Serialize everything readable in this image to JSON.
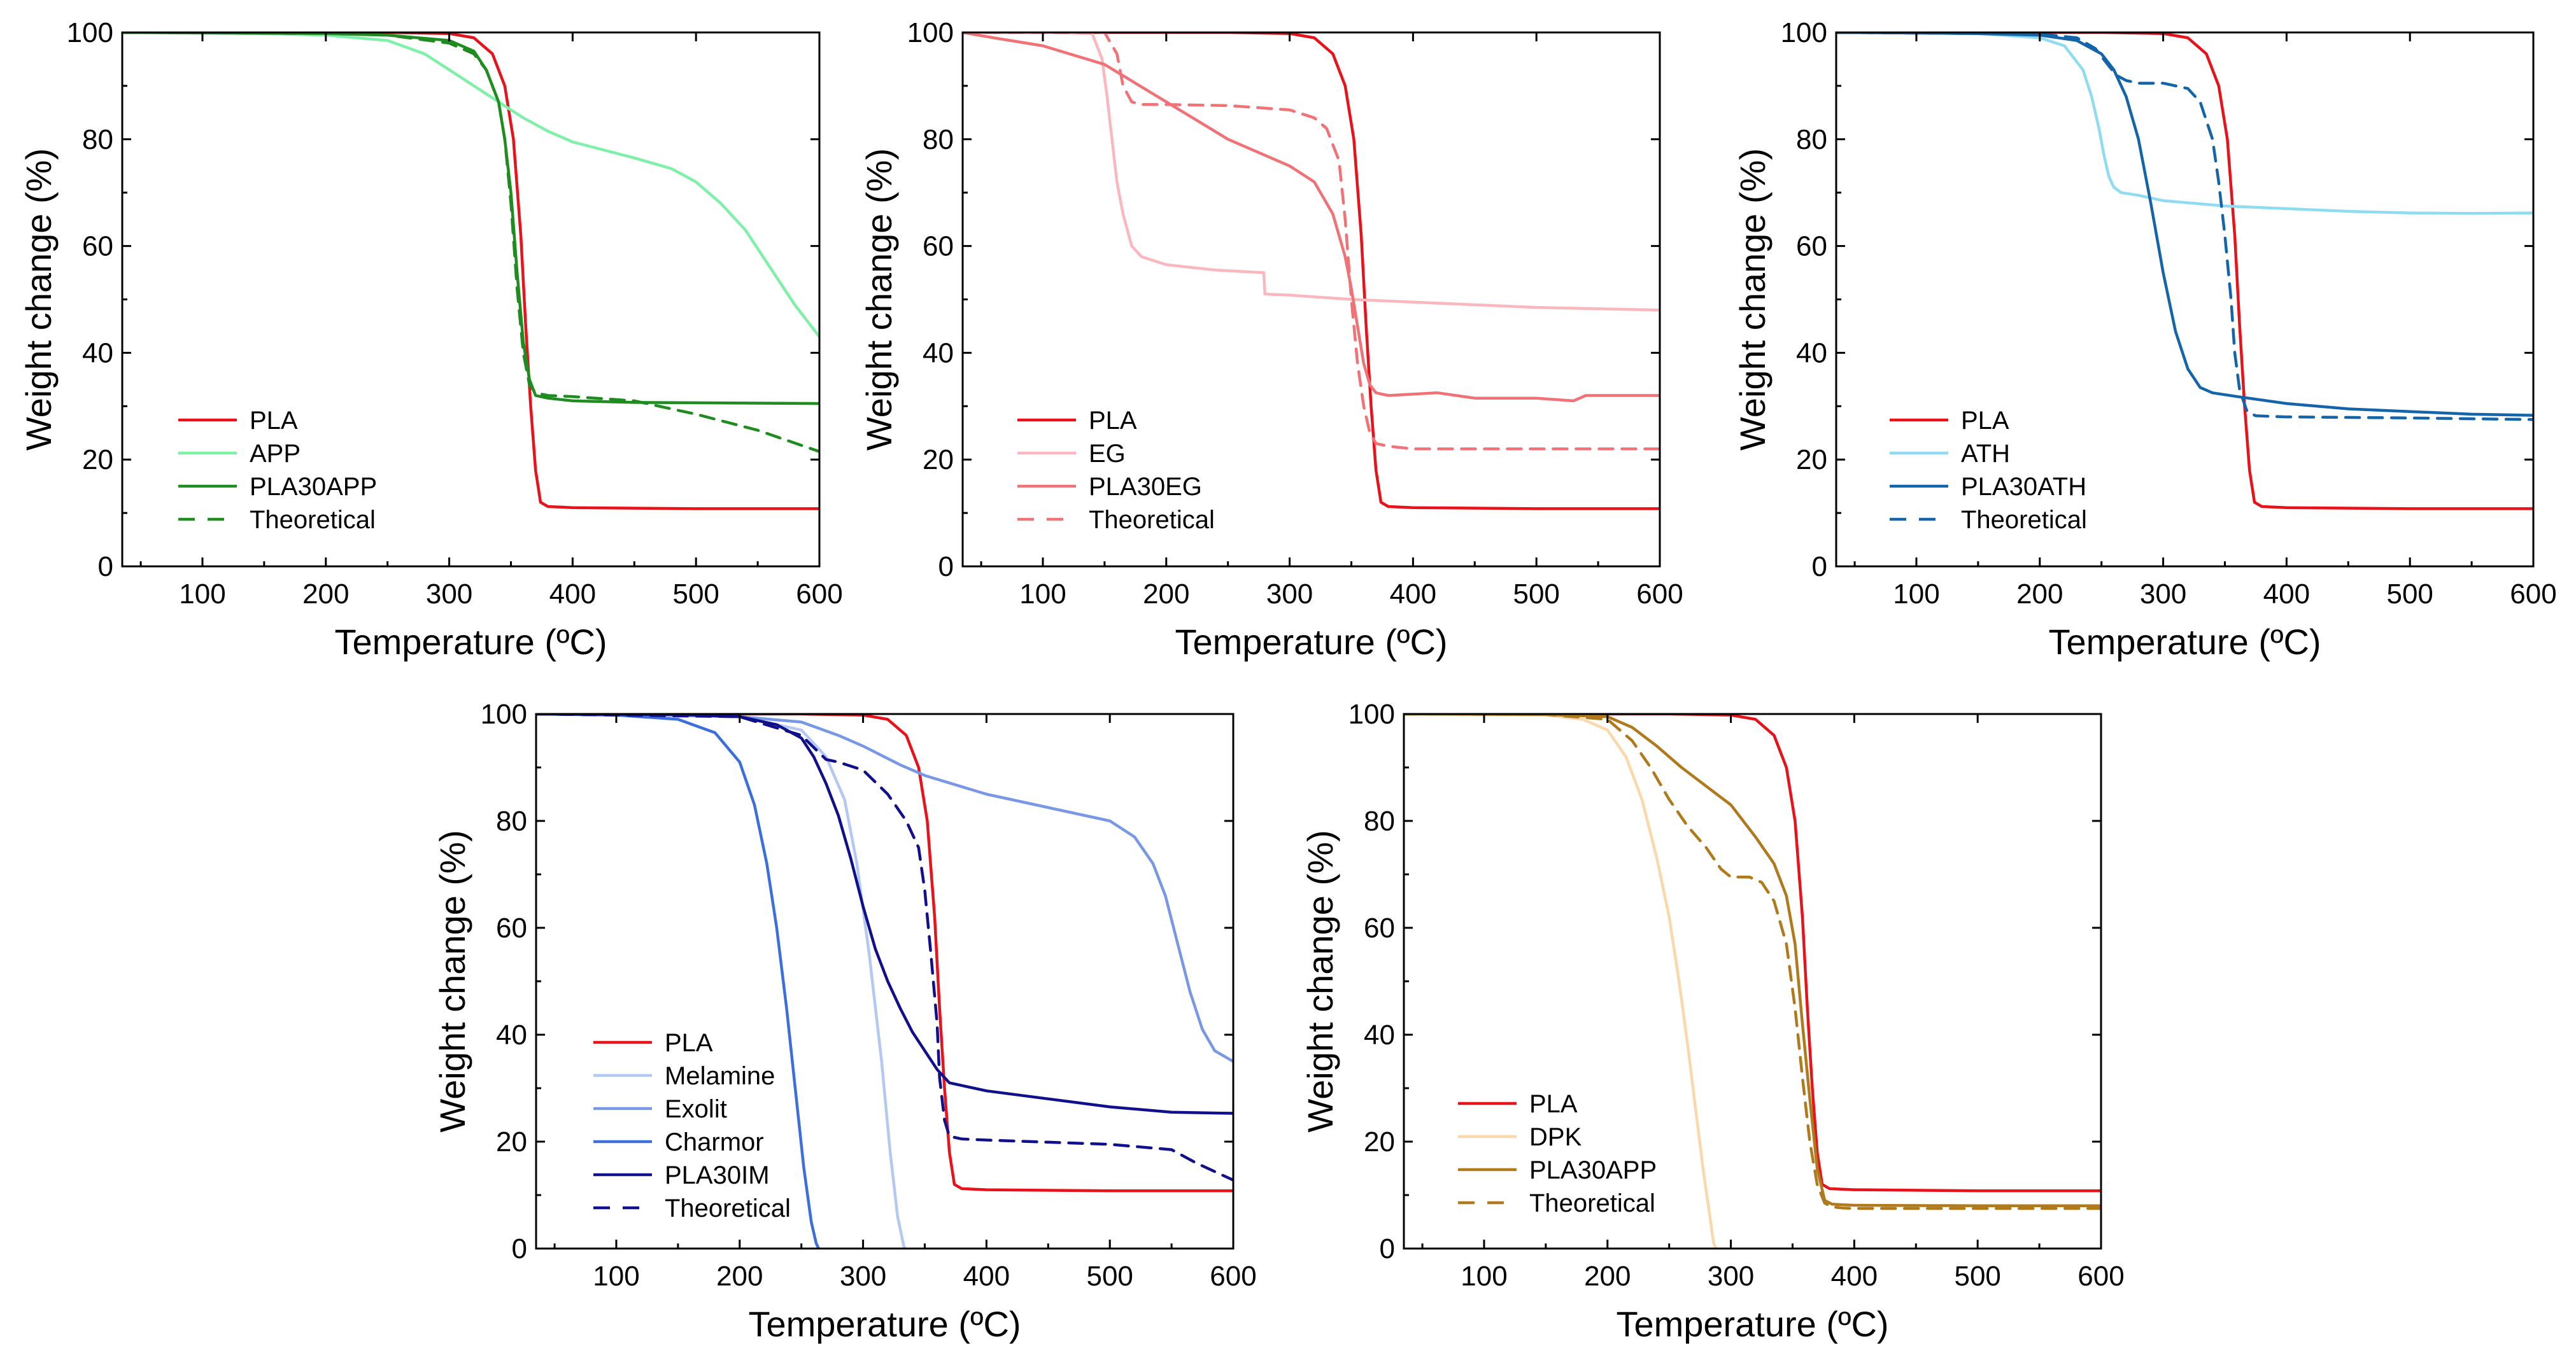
{
  "chart_data": [
    {
      "type": "line",
      "xlabel": "Temperature (ºC)",
      "ylabel": "Weight change (%)",
      "xlim": [
        35,
        600
      ],
      "ylim": [
        0,
        100
      ],
      "xticks": [
        100,
        200,
        300,
        400,
        500,
        600
      ],
      "yticks": [
        0,
        20,
        40,
        60,
        80,
        100
      ],
      "legend": "bottom-left",
      "series": [
        {
          "name": "PLA",
          "color": "#e8121b",
          "dash": false,
          "x": [
            35,
            250,
            300,
            320,
            335,
            345,
            352,
            358,
            362,
            366,
            370,
            374,
            380,
            400,
            500,
            600
          ],
          "y": [
            100,
            100,
            99.8,
            99,
            96,
            90,
            80,
            62,
            45,
            30,
            18,
            12,
            11.2,
            11,
            10.8,
            10.8
          ]
        },
        {
          "name": "APP",
          "color": "#7ff0a8",
          "dash": false,
          "x": [
            35,
            150,
            200,
            250,
            280,
            300,
            320,
            340,
            360,
            380,
            400,
            450,
            480,
            500,
            520,
            540,
            560,
            580,
            600
          ],
          "y": [
            100,
            99.8,
            99.5,
            98.5,
            96,
            93,
            90,
            87,
            84,
            81.5,
            79.5,
            76.5,
            74.5,
            72,
            68,
            63,
            56,
            49,
            43
          ]
        },
        {
          "name": "PLA30APP",
          "color": "#1e8c1e",
          "dash": false,
          "x": [
            35,
            200,
            250,
            300,
            320,
            330,
            340,
            345,
            350,
            355,
            360,
            365,
            370,
            380,
            400,
            450,
            600
          ],
          "y": [
            100,
            99.8,
            99.5,
            98.5,
            96.5,
            93,
            87,
            80,
            70,
            55,
            42,
            35,
            32,
            31.5,
            31,
            30.7,
            30.5
          ]
        },
        {
          "name": "Theoretical",
          "color": "#1e8c1e",
          "dash": true,
          "x": [
            35,
            200,
            250,
            300,
            320,
            330,
            340,
            345,
            350,
            355,
            360,
            365,
            370,
            380,
            400,
            450,
            500,
            550,
            600
          ],
          "y": [
            100,
            99.8,
            99.5,
            98,
            96,
            93,
            87,
            80,
            68,
            52,
            40,
            34,
            32.5,
            32,
            31.8,
            31,
            28.5,
            25.5,
            21.5
          ]
        }
      ]
    },
    {
      "type": "line",
      "xlabel": "Temperature (ºC)",
      "ylabel": "Weight change (%)",
      "xlim": [
        35,
        600
      ],
      "ylim": [
        0,
        100
      ],
      "xticks": [
        100,
        200,
        300,
        400,
        500,
        600
      ],
      "yticks": [
        0,
        20,
        40,
        60,
        80,
        100
      ],
      "legend": "bottom-left",
      "series": [
        {
          "name": "PLA",
          "color": "#e8121b",
          "dash": false,
          "x": [
            35,
            250,
            300,
            320,
            335,
            345,
            352,
            358,
            362,
            366,
            370,
            374,
            380,
            400,
            500,
            600
          ],
          "y": [
            100,
            100,
            99.8,
            99,
            96,
            90,
            80,
            62,
            45,
            30,
            18,
            12,
            11.2,
            11,
            10.8,
            10.8
          ]
        },
        {
          "name": "EG",
          "color": "#fab8be",
          "dash": false,
          "x": [
            35,
            100,
            140,
            148,
            152,
            156,
            160,
            165,
            172,
            180,
            200,
            240,
            279,
            280,
            300,
            350,
            400,
            500,
            600
          ],
          "y": [
            100,
            100,
            99.8,
            95,
            88,
            80,
            72,
            66,
            60,
            58,
            56.5,
            55.5,
            55,
            51,
            50.8,
            50,
            49.5,
            48.5,
            48
          ]
        },
        {
          "name": "PLA30EG",
          "color": "#f07276",
          "dash": false,
          "x": [
            35,
            60,
            100,
            150,
            200,
            250,
            300,
            320,
            335,
            345,
            350,
            355,
            360,
            365,
            370,
            380,
            420,
            450,
            500,
            530,
            540,
            600
          ],
          "y": [
            100,
            99,
            97.5,
            94,
            87,
            80,
            75,
            72,
            66,
            58,
            52,
            45,
            38,
            34,
            32.5,
            32,
            32.5,
            31.5,
            31.5,
            31,
            32,
            32
          ]
        },
        {
          "name": "Theoretical",
          "color": "#f07276",
          "dash": true,
          "x": [
            35,
            150,
            160,
            165,
            172,
            180,
            200,
            250,
            300,
            320,
            330,
            340,
            345,
            350,
            355,
            360,
            365,
            370,
            380,
            400,
            500,
            600
          ],
          "y": [
            100,
            100,
            96,
            90,
            87,
            86.5,
            86.5,
            86.3,
            85.5,
            84,
            82,
            76,
            65,
            50,
            38,
            30,
            25,
            23,
            22.5,
            22,
            22,
            22
          ]
        }
      ]
    },
    {
      "type": "line",
      "xlabel": "Temperature (ºC)",
      "ylabel": "Weight change (%)",
      "xlim": [
        35,
        600
      ],
      "ylim": [
        0,
        100
      ],
      "xticks": [
        100,
        200,
        300,
        400,
        500,
        600
      ],
      "yticks": [
        0,
        20,
        40,
        60,
        80,
        100
      ],
      "legend": "bottom-left",
      "series": [
        {
          "name": "PLA",
          "color": "#e8121b",
          "dash": false,
          "x": [
            35,
            250,
            300,
            320,
            335,
            345,
            352,
            358,
            362,
            366,
            370,
            374,
            380,
            400,
            500,
            600
          ],
          "y": [
            100,
            100,
            99.8,
            99,
            96,
            90,
            80,
            62,
            45,
            30,
            18,
            12,
            11.2,
            11,
            10.8,
            10.8
          ]
        },
        {
          "name": "ATH",
          "color": "#8fdcf2",
          "dash": false,
          "x": [
            35,
            150,
            200,
            220,
            235,
            242,
            248,
            252,
            256,
            260,
            266,
            280,
            300,
            350,
            400,
            450,
            500,
            550,
            600
          ],
          "y": [
            100,
            99.8,
            99,
            97.5,
            93,
            88,
            82,
            77,
            73,
            71,
            70,
            69.5,
            68.5,
            67.5,
            67,
            66.5,
            66.2,
            66.1,
            66.2
          ]
        },
        {
          "name": "PLA30ATH",
          "color": "#1464aa",
          "dash": false,
          "x": [
            35,
            150,
            200,
            230,
            250,
            260,
            270,
            280,
            290,
            300,
            310,
            320,
            330,
            340,
            360,
            400,
            450,
            500,
            550,
            600
          ],
          "y": [
            100,
            99.8,
            99.5,
            98.5,
            96,
            93,
            88,
            80,
            68,
            55,
            44,
            37,
            33.5,
            32.5,
            31.8,
            30.5,
            29.5,
            29,
            28.5,
            28.3
          ]
        },
        {
          "name": "Theoretical",
          "color": "#1464aa",
          "dash": true,
          "x": [
            35,
            200,
            230,
            245,
            255,
            262,
            270,
            280,
            300,
            320,
            330,
            340,
            345,
            350,
            355,
            358,
            362,
            368,
            375,
            400,
            500,
            600
          ],
          "y": [
            100,
            99.7,
            99,
            97,
            94,
            92,
            91,
            90.5,
            90.5,
            89.5,
            87,
            80,
            72,
            62,
            50,
            40,
            33,
            29,
            28.2,
            28,
            27.8,
            27.5
          ]
        }
      ]
    },
    {
      "type": "line",
      "xlabel": "Temperature (ºC)",
      "ylabel": "Weight change (%)",
      "xlim": [
        35,
        600
      ],
      "ylim": [
        0,
        100
      ],
      "xticks": [
        100,
        200,
        300,
        400,
        500,
        600
      ],
      "yticks": [
        0,
        20,
        40,
        60,
        80,
        100
      ],
      "legend": "bottom-left",
      "series": [
        {
          "name": "PLA",
          "color": "#e8121b",
          "dash": false,
          "x": [
            35,
            250,
            300,
            320,
            335,
            345,
            352,
            358,
            362,
            366,
            370,
            374,
            380,
            400,
            500,
            600
          ],
          "y": [
            100,
            100,
            99.8,
            99,
            96,
            90,
            80,
            62,
            45,
            30,
            18,
            12,
            11.2,
            11,
            10.8,
            10.8
          ]
        },
        {
          "name": "Melamine",
          "color": "#b4c8f4",
          "dash": false,
          "x": [
            35,
            200,
            250,
            270,
            285,
            295,
            305,
            315,
            322,
            328,
            333,
            334
          ],
          "y": [
            100,
            99.5,
            97,
            92,
            84,
            72,
            55,
            35,
            18,
            6,
            0.5,
            0
          ]
        },
        {
          "name": "Exolit",
          "color": "#7898e6",
          "dash": false,
          "x": [
            35,
            150,
            200,
            250,
            280,
            300,
            330,
            350,
            400,
            450,
            500,
            520,
            535,
            545,
            555,
            565,
            575,
            585,
            600
          ],
          "y": [
            100,
            99.8,
            99.5,
            98.5,
            96,
            94,
            90.5,
            88.5,
            85,
            82.5,
            80,
            77,
            72,
            66,
            57,
            48,
            41,
            37,
            35
          ]
        },
        {
          "name": "Charmor",
          "color": "#3c6edc",
          "dash": false,
          "x": [
            35,
            100,
            150,
            180,
            200,
            212,
            222,
            230,
            238,
            245,
            252,
            258,
            262,
            264
          ],
          "y": [
            100,
            99.8,
            99,
            96.5,
            91,
            83,
            72,
            60,
            45,
            30,
            15,
            5,
            1,
            0
          ]
        },
        {
          "name": "PLA30IM",
          "color": "#10108c",
          "dash": false,
          "x": [
            35,
            150,
            200,
            230,
            250,
            260,
            270,
            280,
            290,
            300,
            310,
            320,
            330,
            340,
            350,
            360,
            370,
            400,
            450,
            500,
            550,
            600
          ],
          "y": [
            100,
            99.9,
            99.5,
            98,
            95.5,
            92,
            87,
            81,
            73,
            64,
            56,
            50,
            45,
            40.5,
            37,
            33.5,
            31,
            29.5,
            28,
            26.5,
            25.5,
            25.3
          ]
        },
        {
          "name": "Theoretical",
          "color": "#10108c",
          "dash": true,
          "x": [
            35,
            200,
            250,
            270,
            280,
            300,
            320,
            335,
            345,
            350,
            355,
            360,
            362,
            366,
            370,
            380,
            400,
            500,
            550,
            570,
            600
          ],
          "y": [
            100,
            99.5,
            96,
            91.5,
            91,
            89.5,
            85,
            80,
            75,
            67,
            55,
            42,
            32,
            24,
            21,
            20.5,
            20.3,
            19.5,
            18.5,
            16,
            12.8
          ]
        }
      ]
    },
    {
      "type": "line",
      "xlabel": "Temperature (ºC)",
      "ylabel": "Weight change (%)",
      "xlim": [
        35,
        600
      ],
      "ylim": [
        0,
        100
      ],
      "xticks": [
        100,
        200,
        300,
        400,
        500,
        600
      ],
      "yticks": [
        0,
        20,
        40,
        60,
        80,
        100
      ],
      "legend": "bottom-left",
      "series": [
        {
          "name": "PLA",
          "color": "#e8121b",
          "dash": false,
          "x": [
            35,
            250,
            300,
            320,
            335,
            345,
            352,
            358,
            362,
            366,
            370,
            374,
            380,
            400,
            500,
            600
          ],
          "y": [
            100,
            100,
            99.8,
            99,
            96,
            90,
            80,
            62,
            45,
            30,
            18,
            12,
            11.2,
            11,
            10.8,
            10.8
          ]
        },
        {
          "name": "DPK",
          "color": "#fbd8aa",
          "dash": false,
          "x": [
            35,
            150,
            180,
            200,
            215,
            228,
            240,
            250,
            258,
            265,
            272,
            278,
            283,
            286,
            288
          ],
          "y": [
            100,
            99.8,
            99,
            97,
            92,
            84,
            73,
            62,
            50,
            38,
            25,
            14,
            6,
            1,
            0
          ]
        },
        {
          "name": "PLA30APP",
          "color": "#b07a1c",
          "dash": false,
          "x": [
            35,
            150,
            200,
            220,
            240,
            260,
            280,
            300,
            320,
            335,
            345,
            352,
            358,
            364,
            370,
            376,
            382,
            390,
            400,
            500,
            600
          ],
          "y": [
            100,
            99.9,
            99.5,
            97.5,
            94,
            90,
            86.5,
            83,
            77,
            72,
            66,
            57,
            42,
            28,
            15,
            9,
            8.3,
            8.2,
            8.1,
            8,
            8
          ]
        },
        {
          "name": "Theoretical",
          "color": "#b07a1c",
          "dash": true,
          "x": [
            35,
            150,
            200,
            220,
            235,
            250,
            265,
            280,
            292,
            300,
            315,
            325,
            335,
            345,
            352,
            358,
            364,
            370,
            376,
            382,
            390,
            400,
            500,
            600
          ],
          "y": [
            100,
            99.9,
            99,
            95,
            90,
            84,
            79,
            75,
            71,
            69.5,
            69.5,
            68.5,
            65,
            57,
            45,
            32,
            20,
            12,
            8.5,
            7.8,
            7.6,
            7.5,
            7.5,
            7.5
          ]
        }
      ]
    }
  ]
}
